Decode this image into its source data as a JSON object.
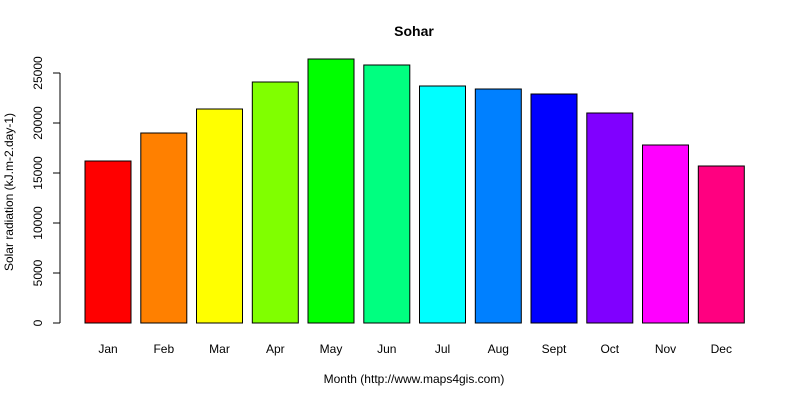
{
  "chart_data": {
    "type": "bar",
    "title": "Sohar",
    "xlabel": "Month (http://www.maps4gis.com)",
    "ylabel": "Solar radiation (kJ.m-2.day-1)",
    "categories": [
      "Jan",
      "Feb",
      "Mar",
      "Apr",
      "May",
      "Jun",
      "Jul",
      "Aug",
      "Sept",
      "Oct",
      "Nov",
      "Dec"
    ],
    "values": [
      16200,
      19000,
      21400,
      24100,
      26400,
      25800,
      23700,
      23400,
      22900,
      21000,
      17800,
      15700
    ],
    "colors": [
      "#FF0000",
      "#FF8000",
      "#FFFF00",
      "#80FF00",
      "#00FF00",
      "#00FF80",
      "#00FFFF",
      "#0080FF",
      "#0000FF",
      "#8000FF",
      "#FF00FF",
      "#FF0080"
    ],
    "yticks": [
      0,
      5000,
      10000,
      15000,
      20000,
      25000
    ],
    "ytick_labels": [
      "0",
      "5000",
      "10000",
      "15000",
      "20000",
      "25000"
    ],
    "ylim": [
      0,
      27000
    ],
    "grid": false,
    "legend": "none"
  }
}
